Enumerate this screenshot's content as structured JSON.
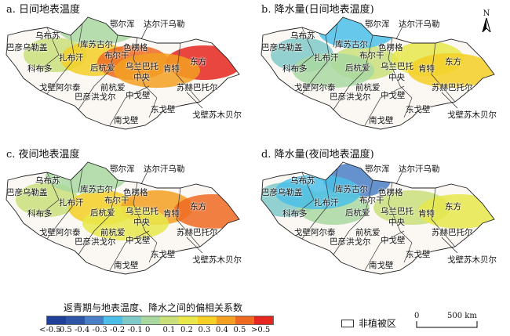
{
  "panels": [
    {
      "title": "a. 日间地表温度",
      "scheme": "warm"
    },
    {
      "title": "b. 降水量(日间地表温度)",
      "scheme": "mixed"
    },
    {
      "title": "c. 夜间地表温度",
      "scheme": "warm2"
    },
    {
      "title": "d. 降水量(夜间地表温度)",
      "scheme": "cool"
    }
  ],
  "regions": [
    "乌布苏",
    "巴彦乌勒盖",
    "库苏古尔",
    "色楞格",
    "鄂尔浑",
    "达尔汗乌勒",
    "扎布汗",
    "布尔干",
    "科布多",
    "后杭爱",
    "乌兰巴托",
    "肯特",
    "东方",
    "中央",
    "戈壁阿尔泰",
    "前杭爱",
    "苏赫巴托尔",
    "中戈壁",
    "巴彦洪戈尔",
    "东戈壁",
    "戈壁苏木贝尔",
    "南戈壁"
  ],
  "north_label": "N",
  "legend": {
    "title": "返青期与地表温度、降水之间的偏相关系数",
    "colors": [
      "#1f3f99",
      "#2e55a6",
      "#4a7fc6",
      "#4bbfe8",
      "#7fcac8",
      "#a8d8a0",
      "#c9e07a",
      "#e8e84a",
      "#f5cf24",
      "#f3a022",
      "#ee6a22",
      "#e62720"
    ],
    "ticks": [
      "<-0.5",
      "-0.5",
      "-0.4",
      "-0.3",
      "-0.2",
      "-0.1",
      "0",
      "0.1",
      "0.2",
      "0.3",
      "0.4",
      "0.5",
      ">0.5"
    ],
    "non_vegetated": "非植被区",
    "scale_zero": "0",
    "scale_label": "500 km"
  }
}
